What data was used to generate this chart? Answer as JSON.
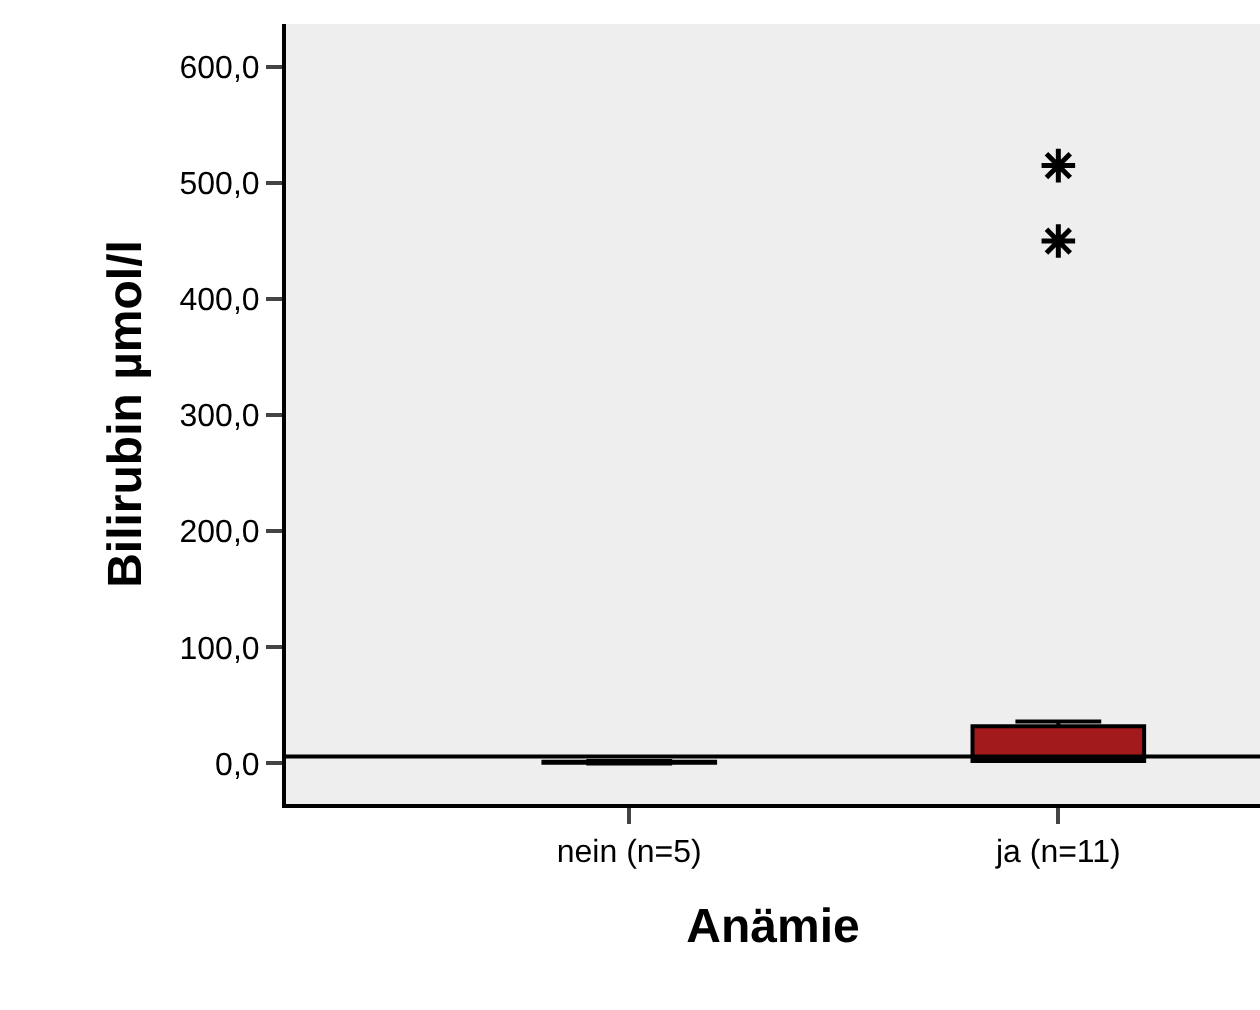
{
  "chart_data": {
    "type": "box",
    "xlabel": "Anämie",
    "ylabel": "Bilirubin µmol/l",
    "categories": [
      "nein (n=5)",
      "ja (n=11)"
    ],
    "boxes": [
      {
        "low": 0,
        "q1": 0.5,
        "median": 1,
        "q3": 1.5,
        "high": 2
      },
      {
        "low": 2,
        "q1": 2,
        "median": 4,
        "q3": 32,
        "high": 36,
        "outliers": [
          450,
          515
        ]
      }
    ],
    "color": "#a31a1c",
    "ylim": [
      -35,
      637
    ],
    "yticks": [
      {
        "value": 0,
        "label": "0,0"
      },
      {
        "value": 100,
        "label": "100,0"
      },
      {
        "value": 200,
        "label": "200,0"
      },
      {
        "value": 300,
        "label": "300,0"
      },
      {
        "value": 400,
        "label": "400,0"
      },
      {
        "value": 500,
        "label": "500,0"
      },
      {
        "value": 600,
        "label": "600,0"
      }
    ],
    "ref_lines": [
      {
        "axis": "y",
        "value": 6,
        "color": "#000000"
      }
    ],
    "grid": false
  }
}
